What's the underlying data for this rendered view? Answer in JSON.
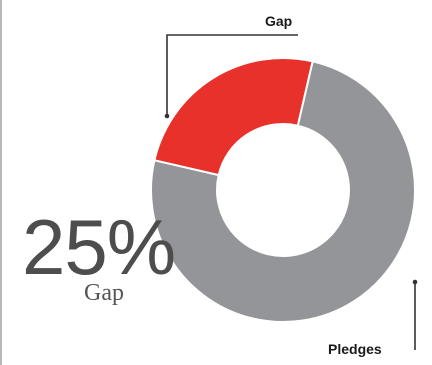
{
  "chart_data": {
    "type": "pie",
    "donut": true,
    "slices": [
      {
        "label": "Gap",
        "value": 25,
        "color": "#e8312a"
      },
      {
        "label": "Pledges",
        "value": 75,
        "color": "#939598"
      }
    ],
    "start_angle_deg": 13,
    "callout": {
      "value_text": "25%",
      "value_label": "Gap"
    },
    "slice_labels": {
      "gap": "Gap",
      "pledges": "Pledges"
    }
  }
}
